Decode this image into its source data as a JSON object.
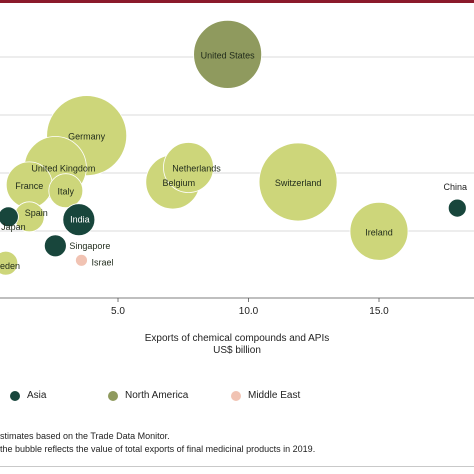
{
  "chart_data": {
    "type": "scatter",
    "xlabel": "Exports of chemical compounds and APIs",
    "xunit": "US$ billion",
    "x_ticks": [
      "5.0",
      "10.0",
      "15.0"
    ],
    "x_tick_values": [
      5,
      10,
      15
    ],
    "grid": "horizontal",
    "points": [
      {
        "label": "United States",
        "region": "North America",
        "x": 9.2,
        "y_level": 0.84,
        "size": 0.34
      },
      {
        "label": "Germany",
        "region": "Europe",
        "x": 3.8,
        "y_level": 0.56,
        "size": 0.4
      },
      {
        "label": "United Kingdom",
        "region": "Europe",
        "x": 2.6,
        "y_level": 0.45,
        "size": 0.31
      },
      {
        "label": "Netherlands",
        "region": "Europe",
        "x": 7.7,
        "y_level": 0.45,
        "size": 0.25
      },
      {
        "label": "Belgium",
        "region": "Europe",
        "x": 7.1,
        "y_level": 0.4,
        "size": 0.27
      },
      {
        "label": "Switzerland",
        "region": "Europe",
        "x": 11.9,
        "y_level": 0.4,
        "size": 0.39
      },
      {
        "label": "France",
        "region": "Europe",
        "x": 1.6,
        "y_level": 0.39,
        "size": 0.23
      },
      {
        "label": "Italy",
        "region": "Europe",
        "x": 3.0,
        "y_level": 0.37,
        "size": 0.17
      },
      {
        "label": "China",
        "region": "Asia",
        "x": 18.0,
        "y_level": 0.31,
        "size": 0.09
      },
      {
        "label": "Spain",
        "region": "Europe",
        "x": 1.6,
        "y_level": 0.28,
        "size": 0.15
      },
      {
        "label": "India",
        "region": "Asia",
        "x": 3.5,
        "y_level": 0.27,
        "size": 0.16
      },
      {
        "label": "Ireland",
        "region": "Europe",
        "x": 15.0,
        "y_level": 0.23,
        "size": 0.29
      },
      {
        "label": "Japan",
        "region": "Asia",
        "x": 0.8,
        "y_level": 0.28,
        "size": 0.1
      },
      {
        "label": "Singapore",
        "region": "Asia",
        "x": 2.6,
        "y_level": 0.18,
        "size": 0.11
      },
      {
        "label": "Israel",
        "region": "Middle East",
        "x": 3.6,
        "y_level": 0.13,
        "size": 0.06
      },
      {
        "label": "Sweden",
        "region": "Europe",
        "x": 0.7,
        "y_level": 0.12,
        "size": 0.12
      },
      {
        "label": "a",
        "region": "Europe",
        "x": -0.2,
        "y_level": 0.24,
        "size": 0.1
      }
    ]
  },
  "colors": {
    "Europe": "#cdd67a",
    "Asia": "#18463c",
    "North America": "#8f9a5e",
    "Middle East": "#f1c3b3",
    "grid": "#cfcfcf",
    "axis": "#555555",
    "accent_rule": "#8b1a2b"
  },
  "legend": [
    {
      "label": "Asia",
      "color": "#18463c"
    },
    {
      "label": "North America",
      "color": "#8f9a5e"
    },
    {
      "label": "Middle East",
      "color": "#f1c3b3"
    }
  ],
  "notes": [
    "stimates based on the Trade Data Monitor.",
    "the bubble reflects the value of total exports of final medicinal products in 2019."
  ]
}
